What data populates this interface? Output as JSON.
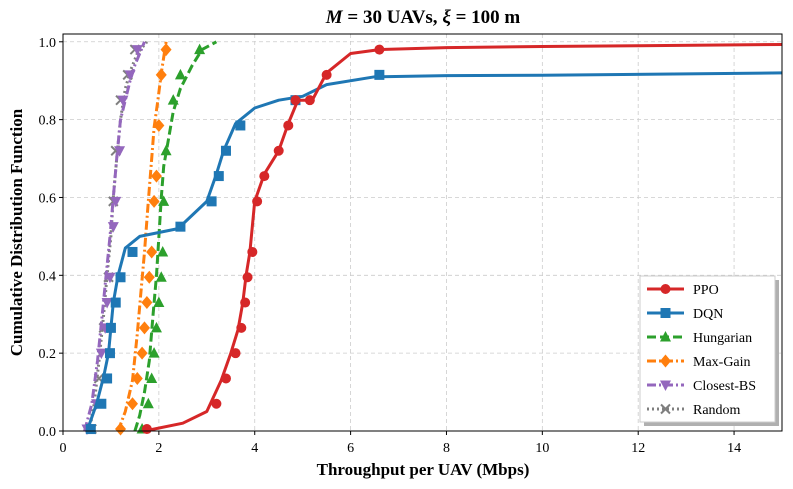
{
  "chart_data": {
    "type": "line",
    "title_parts": {
      "var_m": "M",
      "eq1": " = 30 UAVs, ",
      "var_xi": "ξ",
      "eq2": " = 100 m"
    },
    "xlabel": "Throughput per UAV (Mbps)",
    "ylabel": "Cumulative Distribution Function",
    "xlim": [
      0,
      15
    ],
    "ylim": [
      0,
      1.02
    ],
    "xticks": [
      "0",
      "2",
      "4",
      "6",
      "8",
      "10",
      "12",
      "14"
    ],
    "xtick_values": [
      0,
      2,
      4,
      6,
      8,
      10,
      12,
      14
    ],
    "yticks": [
      "0.0",
      "0.2",
      "0.4",
      "0.6",
      "0.8",
      "1.0"
    ],
    "ytick_values": [
      0,
      0.2,
      0.4,
      0.6,
      0.8,
      1.0
    ],
    "grid": true,
    "legend_position": "bottom-right",
    "series": [
      {
        "name": "PPO",
        "color": "#d62728",
        "dash": "solid",
        "marker": "circle",
        "x": [
          1.7,
          2.5,
          3.0,
          3.3,
          3.5,
          3.65,
          3.75,
          3.82,
          3.9,
          4.0,
          4.2,
          4.5,
          4.7,
          4.9,
          5.2,
          5.5,
          6.0,
          6.6,
          8.0,
          10.0,
          12.0,
          15.0
        ],
        "y": [
          0.0,
          0.02,
          0.05,
          0.13,
          0.2,
          0.26,
          0.33,
          0.4,
          0.46,
          0.59,
          0.66,
          0.72,
          0.79,
          0.85,
          0.85,
          0.92,
          0.97,
          0.98,
          0.985,
          0.988,
          0.99,
          0.993
        ],
        "markers_x": [
          1.75,
          3.2,
          3.4,
          3.6,
          3.72,
          3.8,
          3.85,
          3.95,
          4.05,
          4.2,
          4.5,
          4.7,
          4.85,
          5.15,
          5.5,
          6.6
        ],
        "markers_y": [
          0.005,
          0.07,
          0.135,
          0.2,
          0.265,
          0.33,
          0.395,
          0.46,
          0.59,
          0.655,
          0.72,
          0.785,
          0.85,
          0.85,
          0.915,
          0.98
        ]
      },
      {
        "name": "DQN",
        "color": "#1f77b4",
        "dash": "solid",
        "marker": "square",
        "x": [
          0.5,
          0.7,
          0.85,
          0.95,
          1.05,
          1.15,
          1.3,
          1.6,
          2.0,
          2.4,
          3.0,
          3.2,
          3.35,
          3.6,
          4.0,
          4.5,
          5.0,
          5.5,
          6.5,
          8.0,
          10.0,
          15.0
        ],
        "y": [
          0.0,
          0.07,
          0.14,
          0.2,
          0.33,
          0.4,
          0.47,
          0.5,
          0.51,
          0.52,
          0.59,
          0.66,
          0.72,
          0.79,
          0.83,
          0.85,
          0.86,
          0.89,
          0.91,
          0.913,
          0.914,
          0.92
        ],
        "markers_x": [
          0.58,
          0.8,
          0.92,
          0.98,
          1.0,
          1.1,
          1.2,
          1.45,
          2.45,
          3.1,
          3.25,
          3.4,
          3.7,
          4.85,
          6.6
        ],
        "markers_y": [
          0.005,
          0.07,
          0.135,
          0.2,
          0.265,
          0.33,
          0.395,
          0.46,
          0.525,
          0.59,
          0.655,
          0.72,
          0.785,
          0.85,
          0.915
        ]
      },
      {
        "name": "Hungarian",
        "color": "#2ca02c",
        "dash": "dashed",
        "marker": "triangle-up",
        "x": [
          1.5,
          1.6,
          1.7,
          1.8,
          1.88,
          1.95,
          2.0,
          2.05,
          2.1,
          2.2,
          2.3,
          2.45,
          2.7,
          2.9,
          3.2
        ],
        "y": [
          0.0,
          0.04,
          0.1,
          0.18,
          0.3,
          0.4,
          0.5,
          0.6,
          0.68,
          0.75,
          0.82,
          0.88,
          0.94,
          0.98,
          1.0
        ],
        "markers_x": [
          1.65,
          1.78,
          1.85,
          1.9,
          1.95,
          2.0,
          2.05,
          2.08,
          2.1,
          2.15,
          2.3,
          2.45,
          2.85
        ],
        "markers_y": [
          0.005,
          0.07,
          0.135,
          0.2,
          0.265,
          0.33,
          0.395,
          0.46,
          0.59,
          0.72,
          0.85,
          0.915,
          0.98
        ]
      },
      {
        "name": "Max-Gain",
        "color": "#ff7f0e",
        "dash": "dashdot",
        "marker": "diamond",
        "x": [
          1.15,
          1.3,
          1.45,
          1.55,
          1.62,
          1.7,
          1.78,
          1.85,
          1.9,
          1.98,
          2.05,
          2.15
        ],
        "y": [
          0.0,
          0.05,
          0.13,
          0.25,
          0.35,
          0.46,
          0.59,
          0.7,
          0.78,
          0.85,
          0.92,
          1.0
        ],
        "markers_x": [
          1.2,
          1.45,
          1.55,
          1.65,
          1.7,
          1.75,
          1.8,
          1.85,
          1.9,
          1.95,
          2.0,
          2.05,
          2.15
        ],
        "markers_y": [
          0.005,
          0.07,
          0.135,
          0.2,
          0.265,
          0.33,
          0.395,
          0.46,
          0.59,
          0.655,
          0.785,
          0.915,
          0.98
        ]
      },
      {
        "name": "Closest-BS",
        "color": "#9467bd",
        "dash": "dashdot",
        "marker": "triangle-down",
        "x": [
          0.45,
          0.6,
          0.72,
          0.82,
          0.9,
          0.98,
          1.05,
          1.12,
          1.2,
          1.3,
          1.4,
          1.5,
          1.6,
          1.7
        ],
        "y": [
          0.0,
          0.07,
          0.18,
          0.3,
          0.4,
          0.5,
          0.6,
          0.7,
          0.8,
          0.85,
          0.9,
          0.94,
          0.97,
          1.0
        ],
        "markers_x": [
          0.5,
          0.7,
          0.8,
          0.88,
          0.92,
          0.98,
          1.05,
          1.1,
          1.18,
          1.25,
          1.4,
          1.55
        ],
        "markers_y": [
          0.005,
          0.07,
          0.2,
          0.265,
          0.33,
          0.395,
          0.525,
          0.59,
          0.72,
          0.85,
          0.915,
          0.98
        ]
      },
      {
        "name": "Random",
        "color": "#7f7f7f",
        "dash": "dotted",
        "marker": "x",
        "x": [
          0.55,
          0.65,
          0.75,
          0.85,
          0.92,
          1.0,
          1.05,
          1.12,
          1.2,
          1.3,
          1.42,
          1.55,
          1.75
        ],
        "y": [
          0.0,
          0.07,
          0.18,
          0.3,
          0.4,
          0.5,
          0.6,
          0.7,
          0.8,
          0.88,
          0.93,
          0.97,
          1.0
        ],
        "markers_x": [
          0.6,
          0.75,
          0.85,
          0.95,
          1.05,
          1.1,
          1.2,
          1.35,
          1.5
        ],
        "markers_y": [
          0.005,
          0.135,
          0.265,
          0.395,
          0.59,
          0.72,
          0.85,
          0.915,
          0.98
        ]
      }
    ]
  }
}
